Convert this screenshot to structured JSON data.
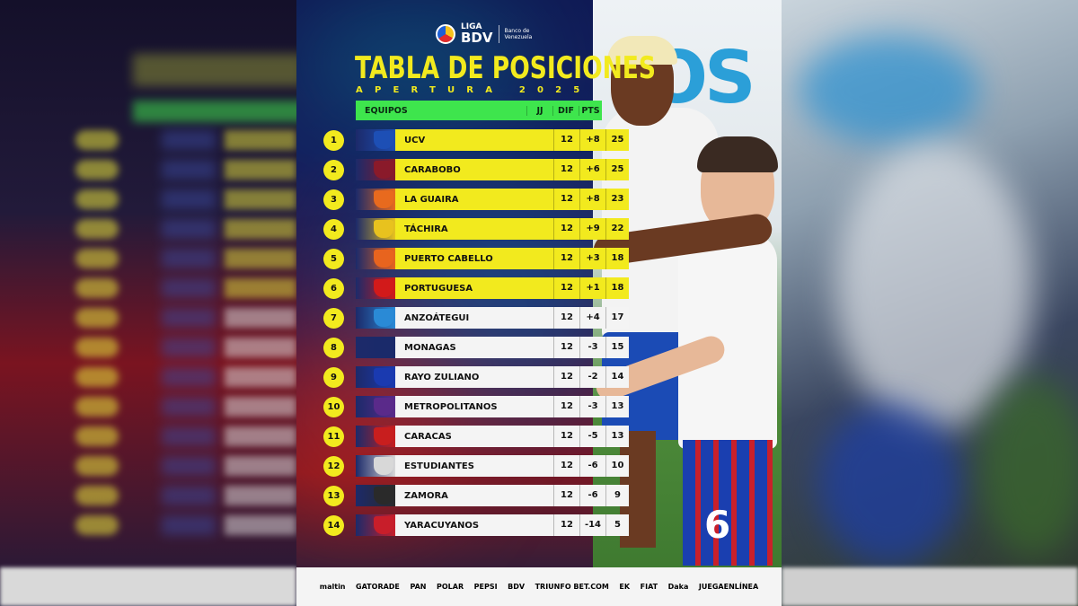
{
  "brand": {
    "liga": "LIGA",
    "bdv": "BDV",
    "banco": "Banco de Venezuela"
  },
  "title": "TABLA DE POSICIONES",
  "subtitle": "APERTURA 2025",
  "headers": {
    "team": "EQUIPOS",
    "jj": "JJ",
    "dif": "DIF",
    "pts": "PTS"
  },
  "photo": {
    "banner_text": "OS",
    "jersey_number": "6"
  },
  "rows": [
    {
      "pos": "1",
      "team": "UCV",
      "jj": "12",
      "dif": "+8",
      "pts": "25",
      "style": "yellow",
      "crest_color": "#1d4fb5"
    },
    {
      "pos": "2",
      "team": "CARABOBO",
      "jj": "12",
      "dif": "+6",
      "pts": "25",
      "style": "yellow",
      "crest_color": "#8a1a2a"
    },
    {
      "pos": "3",
      "team": "LA GUAIRA",
      "jj": "12",
      "dif": "+8",
      "pts": "23",
      "style": "yellow",
      "crest_color": "#e86a1e"
    },
    {
      "pos": "4",
      "team": "TÁCHIRA",
      "jj": "12",
      "dif": "+9",
      "pts": "22",
      "style": "yellow",
      "crest_color": "#e8c21e"
    },
    {
      "pos": "5",
      "team": "PUERTO CABELLO",
      "jj": "12",
      "dif": "+3",
      "pts": "18",
      "style": "yellow",
      "crest_color": "#e8641e"
    },
    {
      "pos": "6",
      "team": "PORTUGUESA",
      "jj": "12",
      "dif": "+1",
      "pts": "18",
      "style": "yellow",
      "crest_color": "#d21a1a"
    },
    {
      "pos": "7",
      "team": "ANZOÁTEGUI",
      "jj": "12",
      "dif": "+4",
      "pts": "17",
      "style": "white",
      "crest_color": "#2a8ad6"
    },
    {
      "pos": "8",
      "team": "MONAGAS",
      "jj": "12",
      "dif": "-3",
      "pts": "15",
      "style": "white",
      "crest_color": "#1a2a6a"
    },
    {
      "pos": "9",
      "team": "RAYO ZULIANO",
      "jj": "12",
      "dif": "-2",
      "pts": "14",
      "style": "white",
      "crest_color": "#1a3ab0"
    },
    {
      "pos": "10",
      "team": "METROPOLITANOS",
      "jj": "12",
      "dif": "-3",
      "pts": "13",
      "style": "white",
      "crest_color": "#5a2a8a"
    },
    {
      "pos": "11",
      "team": "CARACAS",
      "jj": "12",
      "dif": "-5",
      "pts": "13",
      "style": "white",
      "crest_color": "#c81e1e"
    },
    {
      "pos": "12",
      "team": "ESTUDIANTES",
      "jj": "12",
      "dif": "-6",
      "pts": "10",
      "style": "white",
      "crest_color": "#d8d8d8"
    },
    {
      "pos": "13",
      "team": "ZAMORA",
      "jj": "12",
      "dif": "-6",
      "pts": "9",
      "style": "white",
      "crest_color": "#2a2a2a"
    },
    {
      "pos": "14",
      "team": "YARACUYANOS",
      "jj": "12",
      "dif": "-14",
      "pts": "5",
      "style": "white",
      "crest_color": "#c81e2a"
    }
  ],
  "sponsors": [
    "maltin",
    "GATORADE",
    "PAN",
    "POLAR",
    "PEPSI",
    "BDV",
    "TRIUNFO BET.COM",
    "EK",
    "FIAT",
    "Daka",
    "JUEGAENLÍNEA"
  ],
  "colors": {
    "yellow": "#f2ea1e",
    "green_header": "#3ee54d",
    "white_row": "#f4f4f4"
  }
}
